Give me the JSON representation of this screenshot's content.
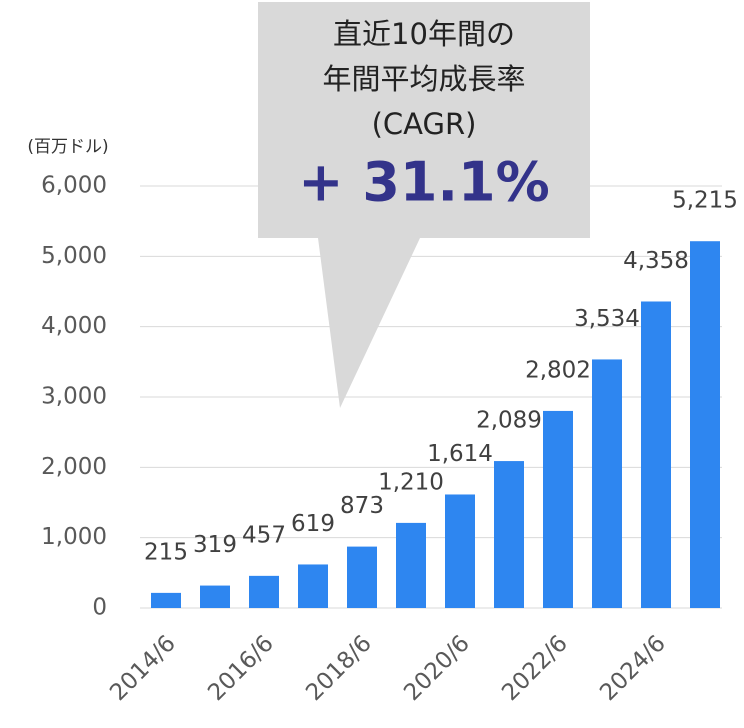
{
  "chart_data": {
    "type": "bar",
    "y_label": "(百万ドル)",
    "categories": [
      "2014/6",
      null,
      "2016/6",
      null,
      "2018/6",
      null,
      "2020/6",
      null,
      "2022/6",
      null,
      "2024/6",
      null
    ],
    "values": [
      215,
      319,
      457,
      619,
      873,
      1210,
      1614,
      2089,
      2802,
      3534,
      4358,
      5215
    ],
    "value_labels": [
      "215",
      "319",
      "457",
      "619",
      "873",
      "1,210",
      "1,614",
      "2,089",
      "2,802",
      "3,534",
      "4,358",
      "5,215"
    ],
    "color": "#2e86f0",
    "ylim": [
      0,
      6000
    ],
    "yticks": [
      0,
      {
        "value": 1000,
        "label": "1,000"
      },
      {
        "value": 2000,
        "label": "2,000"
      },
      {
        "value": 3000,
        "label": "3,000"
      },
      {
        "value": 4000,
        "label": "4,000"
      },
      {
        "value": 5000,
        "label": "5,000"
      },
      {
        "value": 6000,
        "label": "6,000"
      }
    ],
    "grid": true,
    "annotation": {
      "lines": [
        "直近10年間の",
        "年間平均成長率",
        "(CAGR)"
      ],
      "value": "+ 31.1%"
    }
  }
}
